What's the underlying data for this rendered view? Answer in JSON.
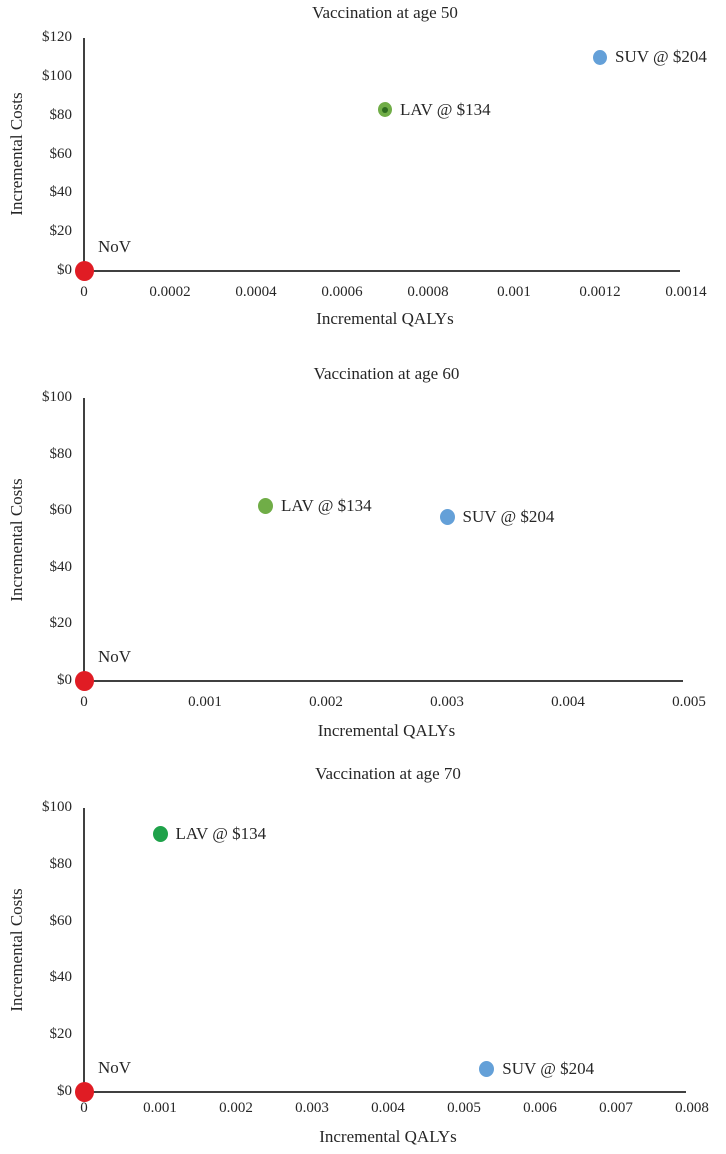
{
  "page": {
    "background_color": "#ffffff",
    "text_color": "#262626",
    "axis_color": "#404040"
  },
  "chart_data": [
    {
      "type": "scatter",
      "title": "Vaccination at age 50",
      "xlabel": "Incremental QALYs",
      "ylabel": "Incremental Costs",
      "xlim": [
        0,
        0.0014
      ],
      "ylim": [
        0,
        120
      ],
      "grid": false,
      "legend": "none (points labeled directly)",
      "xticks": [
        0,
        0.0002,
        0.0004,
        0.0006,
        0.0008,
        0.001,
        0.0012,
        0.0014
      ],
      "xtick_labels": [
        "0",
        "0.0002",
        "0.0004",
        "0.0006",
        "0.0008",
        "0.001",
        "0.0012",
        "0.0014"
      ],
      "yticks": [
        0,
        20,
        40,
        60,
        80,
        100,
        120
      ],
      "ytick_labels": [
        "$0",
        "$20",
        "$40",
        "$60",
        "$80",
        "$100",
        "$120"
      ],
      "points": [
        {
          "name": "nov",
          "label": "NoV",
          "x": 0,
          "y": 0,
          "color": "#e01c24",
          "size": 19,
          "label_position": "above-right"
        },
        {
          "name": "lav",
          "label": "LAV @ $134",
          "x": 0.0007,
          "y": 83,
          "color": "#70ad47",
          "center_dot_color": "#2e6b1f",
          "size": 14,
          "label_position": "right"
        },
        {
          "name": "suv",
          "label": "SUV @ $204",
          "x": 0.0012,
          "y": 110,
          "color": "#64a0d8",
          "size": 14,
          "label_position": "right"
        }
      ]
    },
    {
      "type": "scatter",
      "title": "Vaccination at age 60",
      "xlabel": "Incremental QALYs",
      "ylabel": "Incremental Costs",
      "xlim": [
        0,
        0.005
      ],
      "ylim": [
        0,
        100
      ],
      "grid": false,
      "legend": "none (points labeled directly)",
      "xticks": [
        0,
        0.001,
        0.002,
        0.003,
        0.004,
        0.005
      ],
      "xtick_labels": [
        "0",
        "0.001",
        "0.002",
        "0.003",
        "0.004",
        "0.005"
      ],
      "yticks": [
        0,
        20,
        40,
        60,
        80,
        100
      ],
      "ytick_labels": [
        "$0",
        "$20",
        "$40",
        "$60",
        "$80",
        "$100"
      ],
      "points": [
        {
          "name": "nov",
          "label": "NoV",
          "x": 0,
          "y": 0,
          "color": "#e01c24",
          "size": 19,
          "label_position": "above-right"
        },
        {
          "name": "lav",
          "label": "LAV @ $134",
          "x": 0.0015,
          "y": 62,
          "color": "#70ad47",
          "size": 15,
          "label_position": "right"
        },
        {
          "name": "suv",
          "label": "SUV @ $204",
          "x": 0.003,
          "y": 58,
          "color": "#64a0d8",
          "size": 15,
          "label_position": "right"
        }
      ]
    },
    {
      "type": "scatter",
      "title": "Vaccination at age 70",
      "xlabel": "Incremental QALYs",
      "ylabel": "Incremental Costs",
      "xlim": [
        0,
        0.008
      ],
      "ylim": [
        0,
        100
      ],
      "grid": false,
      "legend": "none (points labeled directly)",
      "xticks": [
        0,
        0.001,
        0.002,
        0.003,
        0.004,
        0.005,
        0.006,
        0.007,
        0.008
      ],
      "xtick_labels": [
        "0",
        "0.001",
        "0.002",
        "0.003",
        "0.004",
        "0.005",
        "0.006",
        "0.007",
        "0.008"
      ],
      "yticks": [
        0,
        20,
        40,
        60,
        80,
        100
      ],
      "ytick_labels": [
        "$0",
        "$20",
        "$40",
        "$60",
        "$80",
        "$100"
      ],
      "points": [
        {
          "name": "nov",
          "label": "NoV",
          "x": 0,
          "y": 0,
          "color": "#e01c24",
          "size": 19,
          "label_position": "above-right"
        },
        {
          "name": "lav",
          "label": "LAV @ $134",
          "x": 0.001,
          "y": 91,
          "color": "#1fa24a",
          "size": 15,
          "label_position": "right"
        },
        {
          "name": "suv",
          "label": "SUV @ $204",
          "x": 0.0053,
          "y": 8,
          "color": "#64a0d8",
          "size": 15,
          "label_position": "right"
        }
      ]
    }
  ]
}
